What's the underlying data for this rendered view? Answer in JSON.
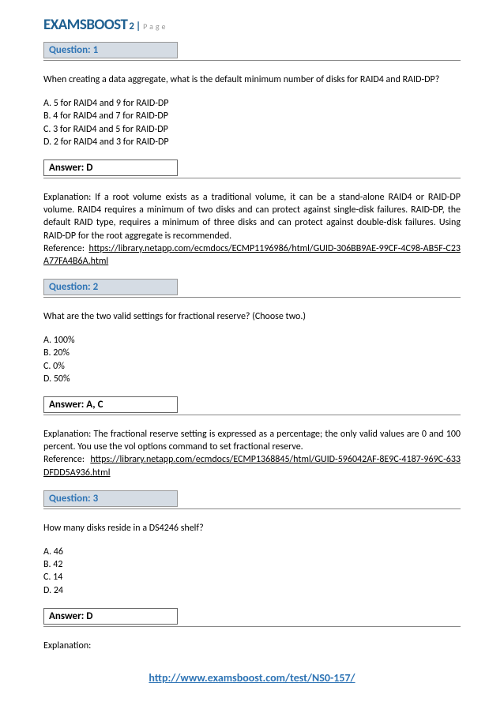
{
  "header": {
    "brand": "EXAMSBOOST",
    "page_number": "2",
    "page_sep": " | ",
    "page_label": "Page"
  },
  "q1": {
    "label": "Question: 1",
    "text": "When creating a data aggregate, what is the default minimum number of disks for RAID4 and RAID-DP?",
    "optA": "A. 5 for RAID4 and 9 for RAID-DP",
    "optB": "B. 4 for RAID4 and 7 for RAID-DP",
    "optC": "C. 3 for RAID4 and 5 for RAID-DP",
    "optD": "D. 2 for RAID4 and 3 for RAID-DP",
    "answer_label": "Answer: D",
    "explanation": "Explanation: If a root volume exists as a traditional volume, it can be a stand-alone RAID4 or RAID-DP volume. RAID4 requires a minimum of two disks and can protect against single-disk failures. RAID-DP, the default RAID type, requires a minimum of three disks and can protect against double-disk failures. Using RAID-DP for the root aggregate is recommended.",
    "ref_label": "Reference: ",
    "ref_link": "https://library.netapp.com/ecmdocs/ECMP1196986/html/GUID-306BB9AE-99CF-4C98-AB5F-C23A77FA4B6A.html"
  },
  "q2": {
    "label": "Question: 2",
    "text": "What are the two valid settings for fractional reserve? (Choose two.)",
    "optA": "A. 100%",
    "optB": "B. 20%",
    "optC": "C. 0%",
    "optD": "D. 50%",
    "answer_label": "Answer: A, C",
    "explanation": "Explanation: The fractional reserve setting is expressed as a percentage; the only valid values are 0 and 100 percent. You use the vol options command to set fractional reserve.",
    "ref_label": "Reference: ",
    "ref_link": "https://library.netapp.com/ecmdocs/ECMP1368845/html/GUID-596042AF-8E9C-4187-969C-633DFDD5A936.html"
  },
  "q3": {
    "label": "Question: 3",
    "text": "How many disks reside in a DS4246 shelf?",
    "optA": "A. 46",
    "optB": "B. 42",
    "optC": "C. 14",
    "optD": "D. 24",
    "answer_label": "Answer: D",
    "explanation": "Explanation:"
  },
  "footer": {
    "link": "http://www.examsboost.com/test/NS0-157/"
  }
}
